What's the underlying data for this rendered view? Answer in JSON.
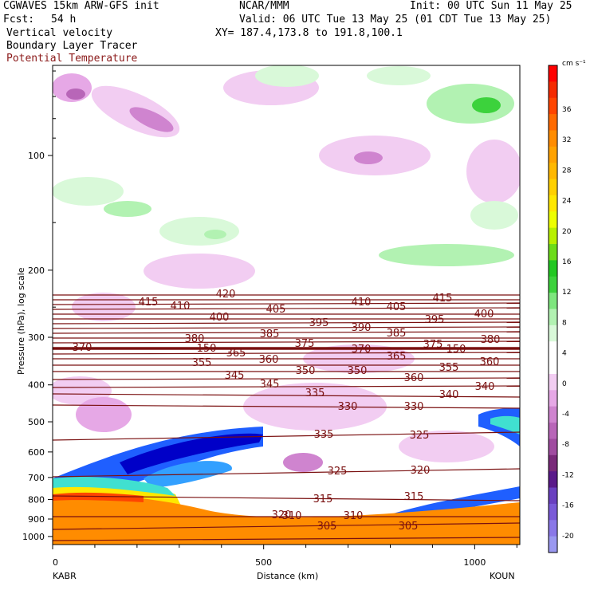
{
  "header": {
    "model": "CGWAVES 15km ARW-GFS init",
    "org": "NCAR/MMM",
    "init": "Init: 00 UTC Sun 11 May 25",
    "fcst_label": "Fcst:",
    "fcst_value": "54 h",
    "valid": "Valid: 06 UTC Tue 13 May 25 (01 CDT Tue 13 May 25)",
    "field1": "Vertical velocity",
    "xy": "XY= 187.4,173.8 to 191.8,100.1",
    "field2": "Boundary Layer Tracer",
    "field3": "Potential Temperature"
  },
  "chart_data": {
    "type": "cross-section",
    "xlabel": "Distance (km)",
    "ylabel": "Pressure (hPa), log scale",
    "x_ticks": [
      "0",
      "500",
      "1000"
    ],
    "x_end_labels": [
      "KABR",
      "KOUN"
    ],
    "y_ticks": [
      "100",
      "200",
      "300",
      "400",
      "500",
      "600",
      "700",
      "800",
      "900",
      "1000"
    ],
    "colorbar": {
      "units": "cm s⁻¹",
      "ticks": [
        "36",
        "32",
        "28",
        "24",
        "20",
        "16",
        "12",
        "8",
        "4",
        "0",
        "-4",
        "-8",
        "-12",
        "-16",
        "-20"
      ],
      "colors": [
        "#ff0000",
        "#f52a00",
        "#ff4500",
        "#ff6a00",
        "#ff8c00",
        "#ffa200",
        "#ffb800",
        "#ffd000",
        "#ffe800",
        "#eeff00",
        "#b8f000",
        "#6cdc1a",
        "#22c822",
        "#3cd23c",
        "#7ee67e",
        "#b2f2b2",
        "#d9f9d9",
        "#ffffff",
        "#ffffff",
        "#f2cdf2",
        "#e6a8e6",
        "#cf84cf",
        "#b866b8",
        "#a04ca0",
        "#7a2a7a",
        "#5a1a8a",
        "#6a40c0",
        "#7a5ad8",
        "#8a78e8",
        "#9a98f0"
      ]
    },
    "theta_labels": [
      "420",
      "415",
      "410",
      "405",
      "410",
      "405",
      "415",
      "400",
      "400",
      "395",
      "390",
      "385",
      "395",
      "380",
      "385",
      "375",
      "370",
      "365",
      "375",
      "380",
      "370",
      "150",
      "365",
      "360",
      "150",
      "355",
      "360",
      "350",
      "350",
      "345",
      "355",
      "360",
      "345",
      "340",
      "335",
      "340",
      "330",
      "330",
      "335",
      "325",
      "325",
      "320",
      "320",
      "315",
      "315",
      "310",
      "310",
      "305",
      "305"
    ]
  }
}
